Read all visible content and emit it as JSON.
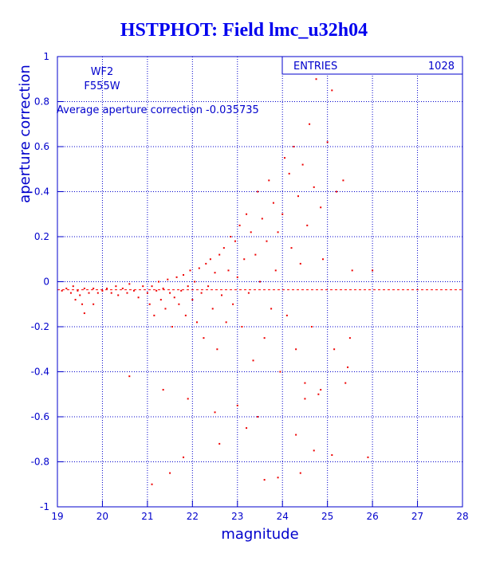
{
  "chart_data": {
    "type": "scatter",
    "title": "HSTPHOT: Field lmc_u32h04",
    "xlabel": "magnitude",
    "ylabel": "aperture correction",
    "xlim": [
      19,
      28
    ],
    "ylim": [
      -1,
      1
    ],
    "x_ticks": [
      "19",
      "20",
      "21",
      "22",
      "23",
      "24",
      "25",
      "26",
      "27",
      "28"
    ],
    "y_ticks": [
      "-1",
      "-0.8",
      "-0.6",
      "-0.4",
      "-0.2",
      "0",
      "0.2",
      "0.4",
      "0.6",
      "0.8",
      "1"
    ],
    "grid": true,
    "stats_box": {
      "label": "ENTRIES",
      "value": "1028"
    },
    "annotations": [
      "WF2",
      "F555W",
      "Average aperture correction -0.035735"
    ],
    "average_line_y": -0.035735,
    "colors": {
      "axes": "#0000cc",
      "points": "#ee0000",
      "title": "#0000ee",
      "average_line": "#ff0000"
    },
    "points": [
      [
        19.1,
        -0.04
      ],
      [
        19.2,
        -0.03
      ],
      [
        19.3,
        -0.05
      ],
      [
        19.35,
        -0.02
      ],
      [
        19.45,
        -0.04
      ],
      [
        19.5,
        -0.06
      ],
      [
        19.55,
        -0.1
      ],
      [
        19.6,
        -0.03
      ],
      [
        19.7,
        -0.05
      ],
      [
        19.8,
        -0.03
      ],
      [
        19.9,
        -0.05
      ],
      [
        20.0,
        -0.04
      ],
      [
        19.6,
        -0.14
      ],
      [
        19.8,
        -0.1
      ],
      [
        19.4,
        -0.08
      ],
      [
        20.1,
        -0.03
      ],
      [
        20.2,
        -0.05
      ],
      [
        20.3,
        -0.02
      ],
      [
        20.35,
        -0.06
      ],
      [
        20.45,
        -0.03
      ],
      [
        20.55,
        -0.05
      ],
      [
        20.6,
        -0.01
      ],
      [
        20.7,
        -0.04
      ],
      [
        20.8,
        -0.07
      ],
      [
        20.9,
        -0.02
      ],
      [
        21.0,
        -0.05
      ],
      [
        21.05,
        -0.1
      ],
      [
        21.1,
        -0.02
      ],
      [
        21.15,
        -0.15
      ],
      [
        21.2,
        -0.04
      ],
      [
        21.25,
        0.0
      ],
      [
        21.3,
        -0.08
      ],
      [
        21.35,
        -0.03
      ],
      [
        21.4,
        -0.12
      ],
      [
        21.45,
        0.01
      ],
      [
        21.5,
        -0.05
      ],
      [
        21.55,
        -0.2
      ],
      [
        21.6,
        -0.07
      ],
      [
        21.65,
        0.02
      ],
      [
        21.7,
        -0.1
      ],
      [
        21.75,
        -0.04
      ],
      [
        21.8,
        0.03
      ],
      [
        21.85,
        -0.15
      ],
      [
        21.9,
        -0.02
      ],
      [
        21.95,
        0.05
      ],
      [
        22.0,
        -0.08
      ],
      [
        22.05,
        0.0
      ],
      [
        22.1,
        -0.18
      ],
      [
        22.15,
        0.06
      ],
      [
        22.2,
        -0.05
      ],
      [
        22.25,
        -0.25
      ],
      [
        22.3,
        0.08
      ],
      [
        22.35,
        -0.02
      ],
      [
        22.4,
        0.1
      ],
      [
        22.45,
        -0.12
      ],
      [
        22.5,
        0.04
      ],
      [
        22.55,
        -0.3
      ],
      [
        22.6,
        0.12
      ],
      [
        22.65,
        -0.06
      ],
      [
        22.7,
        0.15
      ],
      [
        22.75,
        -0.18
      ],
      [
        22.8,
        0.05
      ],
      [
        22.85,
        0.2
      ],
      [
        22.9,
        -0.1
      ],
      [
        22.95,
        0.18
      ],
      [
        23.0,
        0.02
      ],
      [
        23.05,
        0.25
      ],
      [
        23.1,
        -0.2
      ],
      [
        23.15,
        0.1
      ],
      [
        23.2,
        0.3
      ],
      [
        23.25,
        -0.05
      ],
      [
        23.3,
        0.22
      ],
      [
        23.35,
        -0.35
      ],
      [
        23.4,
        0.12
      ],
      [
        23.45,
        0.4
      ],
      [
        23.5,
        0.0
      ],
      [
        23.55,
        0.28
      ],
      [
        23.6,
        -0.25
      ],
      [
        23.65,
        0.18
      ],
      [
        23.7,
        0.45
      ],
      [
        23.75,
        -0.12
      ],
      [
        23.8,
        0.35
      ],
      [
        23.85,
        0.05
      ],
      [
        23.9,
        0.22
      ],
      [
        23.95,
        -0.4
      ],
      [
        24.0,
        0.3
      ],
      [
        24.05,
        0.55
      ],
      [
        24.1,
        -0.15
      ],
      [
        24.15,
        0.48
      ],
      [
        24.2,
        0.15
      ],
      [
        24.25,
        0.6
      ],
      [
        24.3,
        -0.3
      ],
      [
        24.35,
        0.38
      ],
      [
        24.4,
        0.08
      ],
      [
        24.45,
        0.52
      ],
      [
        24.5,
        -0.45
      ],
      [
        24.55,
        0.25
      ],
      [
        24.6,
        0.7
      ],
      [
        24.65,
        -0.2
      ],
      [
        24.7,
        0.42
      ],
      [
        24.75,
        0.9
      ],
      [
        24.8,
        -0.5
      ],
      [
        24.85,
        0.33
      ],
      [
        24.9,
        0.1
      ],
      [
        25.0,
        0.62
      ],
      [
        25.1,
        0.85
      ],
      [
        25.15,
        -0.3
      ],
      [
        25.2,
        0.4
      ],
      [
        25.35,
        0.45
      ],
      [
        25.4,
        -0.45
      ],
      [
        25.5,
        -0.25
      ],
      [
        25.55,
        0.05
      ],
      [
        25.9,
        -0.78
      ],
      [
        26.0,
        0.05
      ],
      [
        23.9,
        -0.87
      ],
      [
        24.4,
        -0.85
      ],
      [
        23.6,
        -0.88
      ],
      [
        21.5,
        -0.85
      ],
      [
        21.1,
        -0.9
      ],
      [
        21.8,
        -0.78
      ],
      [
        22.6,
        -0.72
      ],
      [
        23.2,
        -0.65
      ],
      [
        24.3,
        -0.68
      ],
      [
        24.7,
        -0.75
      ],
      [
        25.1,
        -0.77
      ],
      [
        20.6,
        -0.42
      ],
      [
        21.35,
        -0.48
      ],
      [
        21.9,
        -0.52
      ],
      [
        22.5,
        -0.58
      ],
      [
        23.0,
        -0.55
      ],
      [
        23.45,
        -0.6
      ],
      [
        24.5,
        -0.52
      ],
      [
        24.85,
        -0.48
      ],
      [
        25.45,
        -0.38
      ]
    ]
  }
}
